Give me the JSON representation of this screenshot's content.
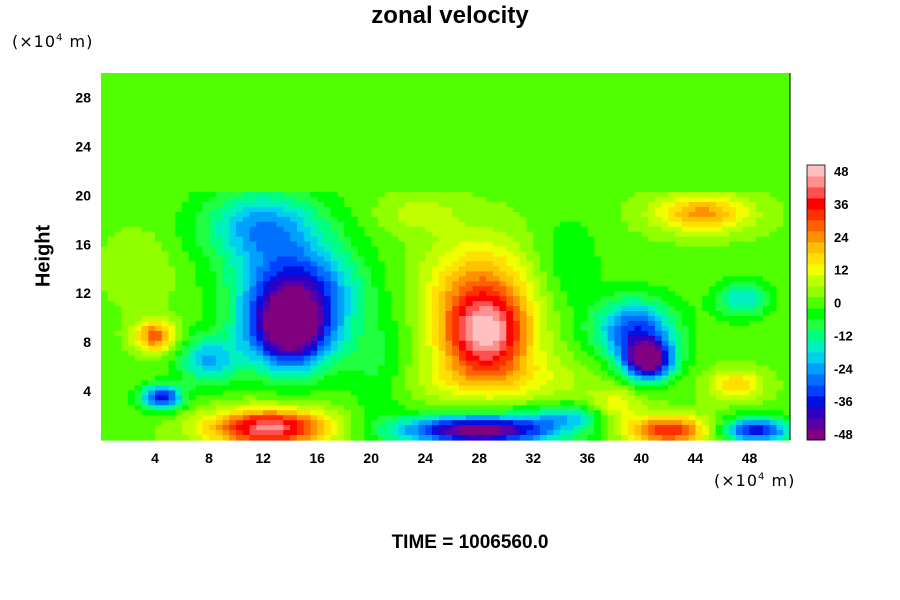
{
  "chart_data": {
    "type": "heatmap",
    "title": "zonal velocity",
    "xlabel": "",
    "ylabel": "Height",
    "x_unit_label": {
      "base": "(×10",
      "exp": "4",
      "rest": " m)"
    },
    "y_unit_label": {
      "base": "(×10",
      "exp": "4",
      "rest": " m)"
    },
    "xlim": [
      0,
      51
    ],
    "ylim": [
      0,
      30
    ],
    "x_ticks": [
      4,
      8,
      12,
      16,
      20,
      24,
      28,
      32,
      36,
      40,
      44,
      48
    ],
    "y_ticks": [
      4,
      8,
      12,
      16,
      20,
      24,
      28
    ],
    "colorbar": {
      "min": -48,
      "max": 48,
      "step": 4,
      "tick_labels": [
        48,
        36,
        24,
        12,
        0,
        -12,
        -24,
        -36,
        -48
      ],
      "colors": [
        "#800080",
        "#5a00a8",
        "#2f00c4",
        "#0010e0",
        "#0040ff",
        "#0070ff",
        "#00a0ff",
        "#00d0f0",
        "#00f0c0",
        "#00ff80",
        "#20ff40",
        "#00ff00",
        "#50ff00",
        "#90ff00",
        "#c0ff00",
        "#f0ff00",
        "#ffe000",
        "#ffc000",
        "#ff9000",
        "#ff6000",
        "#ff3000",
        "#ff0000",
        "#ff5050",
        "#ff9090",
        "#ffc0c0"
      ]
    },
    "features": [
      {
        "x": 14.0,
        "y": 8.8,
        "value": -48,
        "sx": 3.2,
        "sy": 3.2
      },
      {
        "x": 14.5,
        "y": 12.5,
        "value": -30,
        "sx": 4.5,
        "sy": 3.5
      },
      {
        "x": 12.0,
        "y": 17.5,
        "value": -22,
        "sx": 4.5,
        "sy": 3.0
      },
      {
        "x": 8.0,
        "y": 6.5,
        "value": -20,
        "sx": 2.2,
        "sy": 2.0
      },
      {
        "x": 4.5,
        "y": 3.5,
        "value": -36,
        "sx": 1.5,
        "sy": 1.0
      },
      {
        "x": 28.5,
        "y": 8.5,
        "value": 44,
        "sx": 3.2,
        "sy": 3.2
      },
      {
        "x": 28.0,
        "y": 12.5,
        "value": 24,
        "sx": 4.0,
        "sy": 4.0
      },
      {
        "x": 29.0,
        "y": 5.0,
        "value": 14,
        "sx": 7.0,
        "sy": 2.0
      },
      {
        "x": 40.5,
        "y": 6.5,
        "value": -48,
        "sx": 1.8,
        "sy": 1.6
      },
      {
        "x": 39.5,
        "y": 9.0,
        "value": -30,
        "sx": 3.0,
        "sy": 2.5
      },
      {
        "x": 12.5,
        "y": 1.0,
        "value": 46,
        "sx": 4.5,
        "sy": 1.5
      },
      {
        "x": 28.0,
        "y": 0.8,
        "value": -48,
        "sx": 6.0,
        "sy": 1.2
      },
      {
        "x": 42.0,
        "y": 0.8,
        "value": 36,
        "sx": 3.0,
        "sy": 1.2
      },
      {
        "x": 48.5,
        "y": 0.8,
        "value": -36,
        "sx": 2.5,
        "sy": 1.0
      },
      {
        "x": 44.5,
        "y": 18.5,
        "value": 26,
        "sx": 3.5,
        "sy": 1.5
      },
      {
        "x": 4.0,
        "y": 8.5,
        "value": 30,
        "sx": 1.5,
        "sy": 1.3
      },
      {
        "x": 47.0,
        "y": 4.5,
        "value": 20,
        "sx": 2.0,
        "sy": 1.2
      },
      {
        "x": 38.0,
        "y": 2.5,
        "value": 18,
        "sx": 2.0,
        "sy": 1.5
      },
      {
        "x": 3.0,
        "y": 14.0,
        "value": 8,
        "sx": 2.5,
        "sy": 3.0
      },
      {
        "x": 20.5,
        "y": 6.0,
        "value": -6,
        "sx": 2.5,
        "sy": 4.0
      },
      {
        "x": 34.5,
        "y": 14.5,
        "value": -4,
        "sx": 2.5,
        "sy": 4.0
      },
      {
        "x": 47.5,
        "y": 11.5,
        "value": -16,
        "sx": 2.0,
        "sy": 1.5
      },
      {
        "x": 23.5,
        "y": 18.5,
        "value": 10,
        "sx": 3.0,
        "sy": 1.5
      },
      {
        "x": 35.0,
        "y": 2.0,
        "value": -14,
        "sx": 3.5,
        "sy": 1.0
      }
    ],
    "background_value": 3,
    "upper_layer": {
      "above_y": 20.2,
      "value": 0
    }
  },
  "time_label": "TIME = 1006560.0"
}
